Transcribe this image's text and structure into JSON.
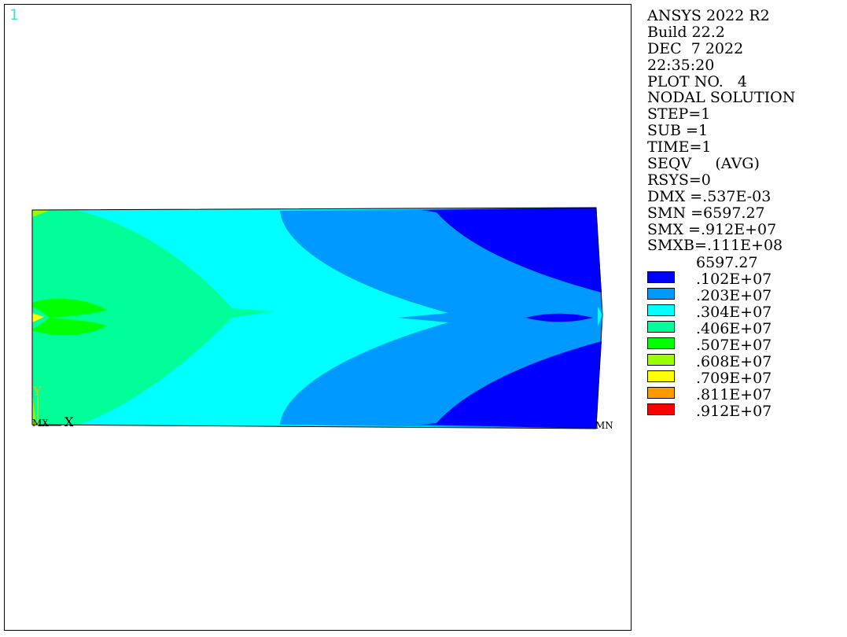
{
  "window": {
    "number": "1"
  },
  "info": {
    "lines": [
      "ANSYS 2022 R2",
      "Build 22.2",
      "DEC  7 2022",
      "22:35:20",
      "PLOT NO.   4",
      "NODAL SOLUTION",
      "STEP=1",
      "SUB =1",
      "TIME=1",
      "SEQV     (AVG)",
      "RSYS=0",
      "DMX =.537E-03",
      "SMN =6597.27",
      "SMX =.912E+07",
      "SMXB=.111E+08"
    ]
  },
  "legend": {
    "min_label": "6597.27",
    "bands": [
      {
        "color": "#0000ff",
        "label": ".102E+07"
      },
      {
        "color": "#0099ff",
        "label": ".203E+07"
      },
      {
        "color": "#00ffff",
        "label": ".304E+07"
      },
      {
        "color": "#00ff99",
        "label": ".406E+07"
      },
      {
        "color": "#00ff00",
        "label": ".507E+07"
      },
      {
        "color": "#99ff00",
        "label": ".608E+07"
      },
      {
        "color": "#ffff00",
        "label": ".709E+07"
      },
      {
        "color": "#ff9900",
        "label": ".811E+07"
      },
      {
        "color": "#ff0000",
        "label": ".912E+07"
      }
    ]
  },
  "model": {
    "axis_x": "X",
    "axis_y": "Y",
    "mx_marker": "MX",
    "mn_marker": "MN"
  }
}
